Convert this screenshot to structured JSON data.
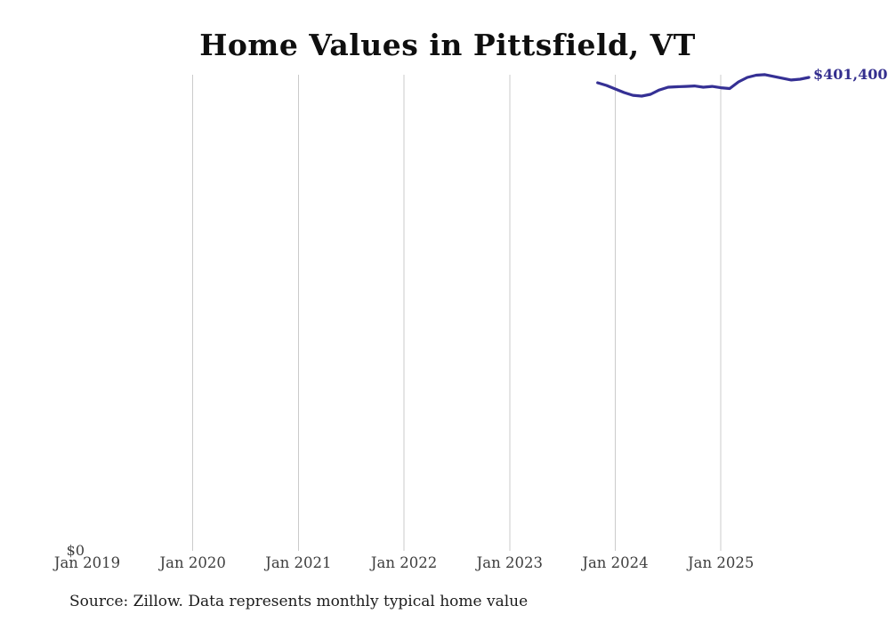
{
  "title": "Home Values in Pittsfield, VT",
  "source_note": "Source: Zillow. Data represents monthly typical home value",
  "labels": {
    "y_zero": "$0",
    "end_value": "$401,400"
  },
  "colors": {
    "line": "#353094",
    "end_label": "#332e8e",
    "grid": "#cbcbcb",
    "tick_text": "#3e3e3e",
    "title_text": "#0f0f0f",
    "source_text": "#1c1c1c",
    "background": "#ffffff"
  },
  "chart_data": {
    "type": "line",
    "title": "Home Values in Pittsfield, VT",
    "xlabel": "",
    "ylabel": "",
    "ylim": [
      0,
      420000
    ],
    "grid": "vertical-gridlines-only",
    "legend": "none",
    "x_ticks": [
      {
        "label": "Jan 2019",
        "gridline": false
      },
      {
        "label": "Jan 2020",
        "gridline": true
      },
      {
        "label": "Jan 2021",
        "gridline": true
      },
      {
        "label": "Jan 2022",
        "gridline": true
      },
      {
        "label": "Jan 2023",
        "gridline": true
      },
      {
        "label": "Jan 2024",
        "gridline": true
      },
      {
        "label": "Jan 2025",
        "gridline": true
      }
    ],
    "series": [
      {
        "name": "Monthly typical home value (USD)",
        "x": [
          "Nov 2023",
          "Dec 2023",
          "Jan 2024",
          "Feb 2024",
          "Mar 2024",
          "Apr 2024",
          "May 2024",
          "Jun 2024",
          "Jul 2024",
          "Aug 2024",
          "Sep 2024",
          "Oct 2024",
          "Nov 2024",
          "Dec 2024",
          "Jan 2025",
          "Feb 2025",
          "Mar 2025",
          "Apr 2025",
          "May 2025",
          "Jun 2025",
          "Jul 2025",
          "Aug 2025",
          "Sep 2025",
          "Oct 2025",
          "Nov 2025"
        ],
        "values": [
          396900,
          394600,
          391600,
          388600,
          386300,
          385600,
          387100,
          390800,
          393100,
          393500,
          393800,
          394200,
          393100,
          393800,
          392700,
          392000,
          397600,
          401400,
          403300,
          403700,
          402200,
          400700,
          399200,
          399900,
          401400
        ]
      }
    ],
    "end_label": "$401,400"
  }
}
